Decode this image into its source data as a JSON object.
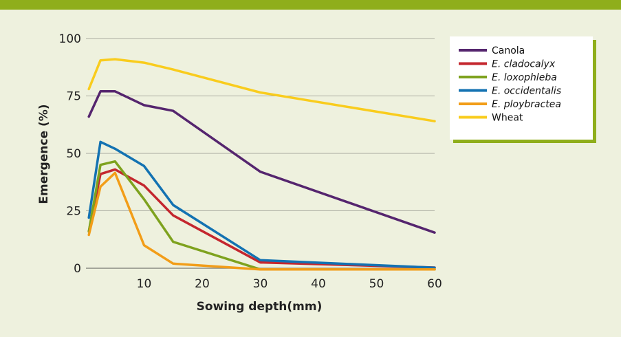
{
  "chart_data": {
    "type": "line",
    "xlabel": "Sowing depth(mm)",
    "ylabel": "Emergence (%)",
    "xlim": [
      0,
      60
    ],
    "ylim": [
      0,
      100
    ],
    "x_ticks": [
      10,
      20,
      30,
      40,
      50,
      60
    ],
    "y_ticks": [
      0,
      25,
      50,
      75,
      100
    ],
    "grid": "horizontal",
    "legend_position": "top-right",
    "series": [
      {
        "name": "Canola",
        "italic": false,
        "color": "#55256e",
        "points": [
          [
            0.5,
            66
          ],
          [
            2.5,
            77
          ],
          [
            5,
            77
          ],
          [
            10,
            71
          ],
          [
            15,
            68.5
          ],
          [
            30,
            42
          ],
          [
            60,
            15.5
          ]
        ]
      },
      {
        "name": "E. cladocalyx",
        "italic": true,
        "color": "#c4262e",
        "points": [
          [
            0.5,
            16
          ],
          [
            2.5,
            41
          ],
          [
            5,
            43
          ],
          [
            10,
            36
          ],
          [
            15,
            23
          ],
          [
            30,
            2.5
          ],
          [
            60,
            0.3
          ]
        ]
      },
      {
        "name": "E. loxophleba",
        "italic": true,
        "color": "#7ea21e",
        "points": [
          [
            0.5,
            16
          ],
          [
            2.5,
            45
          ],
          [
            5,
            46.5
          ],
          [
            10,
            30
          ],
          [
            15,
            11.5
          ],
          [
            30,
            -0.5
          ],
          [
            60,
            -0.5
          ]
        ]
      },
      {
        "name": "E. occidentalis",
        "italic": true,
        "color": "#1372b2",
        "points": [
          [
            0.5,
            22
          ],
          [
            2.5,
            55
          ],
          [
            5,
            52
          ],
          [
            10,
            44.5
          ],
          [
            15,
            27.5
          ],
          [
            30,
            3.5
          ],
          [
            60,
            0.2
          ]
        ]
      },
      {
        "name": "E. ploybractea",
        "italic": true,
        "color": "#f29d18",
        "points": [
          [
            0.5,
            14.5
          ],
          [
            2.5,
            35.5
          ],
          [
            5,
            41.5
          ],
          [
            10,
            10
          ],
          [
            15,
            2
          ],
          [
            30,
            -0.5
          ],
          [
            60,
            -0.5
          ]
        ]
      },
      {
        "name": "Wheat",
        "italic": false,
        "color": "#f9cc1d",
        "points": [
          [
            0.5,
            78
          ],
          [
            2.5,
            90.5
          ],
          [
            5,
            91
          ],
          [
            10,
            89.5
          ],
          [
            15,
            86.5
          ],
          [
            30,
            76.5
          ],
          [
            60,
            64
          ]
        ]
      }
    ]
  }
}
